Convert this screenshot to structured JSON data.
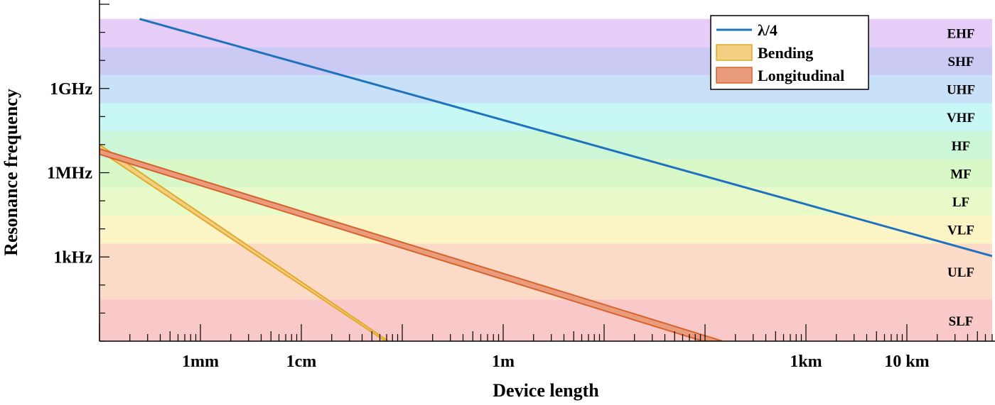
{
  "chart_data": {
    "type": "line",
    "xlabel": "Device length",
    "ylabel": "Resonance frequency",
    "x_scale": "log",
    "y_scale": "log",
    "xlim_m": [
      0.0001,
      70000
    ],
    "ylim_hz": [
      1,
      1000000000000
    ],
    "x_major_ticks": [
      {
        "value_m": 0.001,
        "label": "1mm"
      },
      {
        "value_m": 0.01,
        "label": "1cm"
      },
      {
        "value_m": 1,
        "label": "1m"
      },
      {
        "value_m": 1000,
        "label": "1km"
      },
      {
        "value_m": 10000,
        "label": "10 km"
      }
    ],
    "y_major_ticks": [
      {
        "value_hz": 1000,
        "label": "1kHz"
      },
      {
        "value_hz": 1000000,
        "label": "1MHz"
      },
      {
        "value_hz": 1000000000,
        "label": "1GHz"
      }
    ],
    "bands": [
      {
        "label": "SLF",
        "from_hz": 1,
        "to_hz": 30,
        "color": "#f9c9c9"
      },
      {
        "label": "ULF",
        "from_hz": 30,
        "to_hz": 3000,
        "color": "#fbdac8"
      },
      {
        "label": "VLF",
        "from_hz": 3000,
        "to_hz": 30000,
        "color": "#fbf4c5"
      },
      {
        "label": "LF",
        "from_hz": 30000,
        "to_hz": 300000,
        "color": "#e9fac9"
      },
      {
        "label": "MF",
        "from_hz": 300000,
        "to_hz": 3000000,
        "color": "#d8f8c8"
      },
      {
        "label": "HF",
        "from_hz": 3000000,
        "to_hz": 30000000,
        "color": "#cbf6d7"
      },
      {
        "label": "VHF",
        "from_hz": 30000000,
        "to_hz": 300000000,
        "color": "#c8f8f6"
      },
      {
        "label": "UHF",
        "from_hz": 300000000,
        "to_hz": 3000000000,
        "color": "#c8e1f8"
      },
      {
        "label": "SHF",
        "from_hz": 3000000000,
        "to_hz": 30000000000,
        "color": "#cbcaf4"
      },
      {
        "label": "EHF",
        "from_hz": 30000000000,
        "to_hz": 300000000000,
        "color": "#e6cdf7"
      }
    ],
    "series": [
      {
        "name": "λ/4",
        "kind": "line",
        "color": "#1f72bd",
        "points": [
          {
            "x_m": 0.00025,
            "y_hz": 300000000000
          },
          {
            "x_m": 70000,
            "y_hz": 1070
          }
        ]
      },
      {
        "name": "Bending",
        "kind": "band",
        "fill": "#f2cf82",
        "stroke": "#e2a92c",
        "upper": [
          {
            "x_m": 0.0001,
            "y_hz": 10000000
          },
          {
            "x_m": 0.073,
            "y_hz": 1
          }
        ],
        "lower": [
          {
            "x_m": 0.0001,
            "y_hz": 6000000
          },
          {
            "x_m": 0.068,
            "y_hz": 1
          }
        ]
      },
      {
        "name": "Longitudinal",
        "kind": "band",
        "fill": "#e99c7c",
        "stroke": "#d9622c",
        "upper": [
          {
            "x_m": 0.0001,
            "y_hz": 7000000
          },
          {
            "x_m": 150,
            "y_hz": 1
          }
        ],
        "lower": [
          {
            "x_m": 0.0001,
            "y_hz": 4500000
          },
          {
            "x_m": 95,
            "y_hz": 1
          }
        ]
      }
    ],
    "legend": {
      "position": "top-right",
      "entries": [
        {
          "label": "λ/4",
          "swatch": "line"
        },
        {
          "label": "Bending",
          "swatch": "patch"
        },
        {
          "label": "Longitudinal",
          "swatch": "patch"
        }
      ]
    }
  }
}
